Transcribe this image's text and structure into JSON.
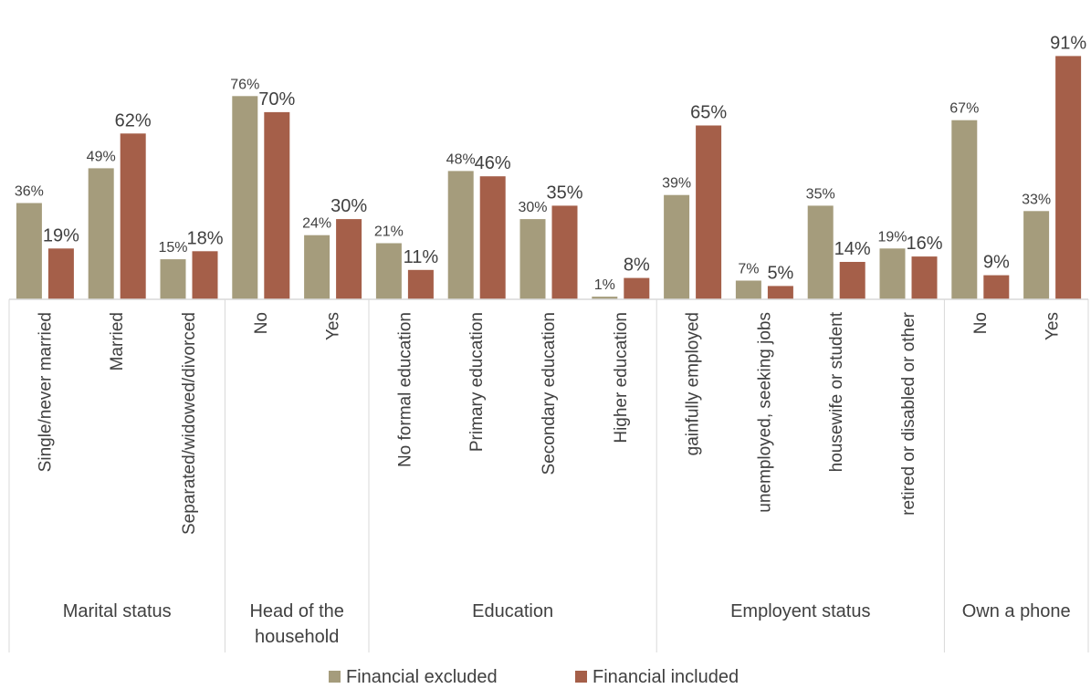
{
  "chart_data": {
    "type": "bar",
    "groups": [
      {
        "label": "Marital status",
        "categories": [
          "Single/never married",
          "Married",
          "Separated/widowed/divorced"
        ]
      },
      {
        "label": "Head of the household",
        "categories": [
          "No",
          "Yes"
        ]
      },
      {
        "label": "Education",
        "categories": [
          "No formal education",
          "Primary education",
          "Secondary education",
          "Higher education"
        ]
      },
      {
        "label": "Employent status",
        "categories": [
          "gainfully employed",
          "unemployed, seeking jobs",
          "housewife or student",
          "retired or disabled or other"
        ]
      },
      {
        "label": "Own a phone",
        "categories": [
          "No",
          "Yes"
        ]
      }
    ],
    "series": [
      {
        "name": "Financial excluded",
        "color": "#A59C7C",
        "values": [
          36,
          49,
          15,
          76,
          24,
          21,
          48,
          30,
          1,
          39,
          7,
          35,
          19,
          67,
          33
        ]
      },
      {
        "name": "Financial included",
        "color": "#A55F49",
        "values": [
          19,
          62,
          18,
          70,
          30,
          11,
          46,
          35,
          8,
          65,
          5,
          14,
          16,
          9,
          91
        ]
      }
    ],
    "value_suffix": "%",
    "ylim": [
      0,
      100
    ],
    "legend_position": "bottom",
    "grid": false
  }
}
